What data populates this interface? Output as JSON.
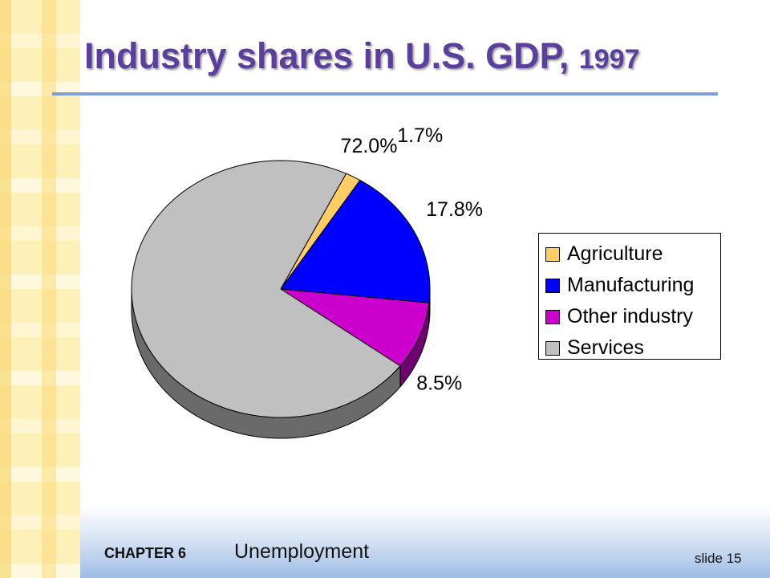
{
  "slide": {
    "title_main": "Industry shares in U.S. GDP, ",
    "title_year": "1997",
    "footer_chapter": "CHAPTER 6",
    "footer_topic": "Unemployment",
    "footer_slide": "slide 15"
  },
  "chart_data": {
    "type": "pie",
    "title": "Industry shares in U.S. GDP, 1997",
    "legend_position": "right",
    "slices": [
      {
        "name": "Agriculture",
        "value": 1.7,
        "label": "1.7%",
        "color": "#ffcc66"
      },
      {
        "name": "Manufacturing",
        "value": 17.8,
        "label": "17.8%",
        "color": "#0000ff"
      },
      {
        "name": "Other industry",
        "value": 8.5,
        "label": "8.5%",
        "color": "#cc00cc"
      },
      {
        "name": "Services",
        "value": 72.0,
        "label": "72.0%",
        "color": "#c0c0c0"
      }
    ]
  }
}
